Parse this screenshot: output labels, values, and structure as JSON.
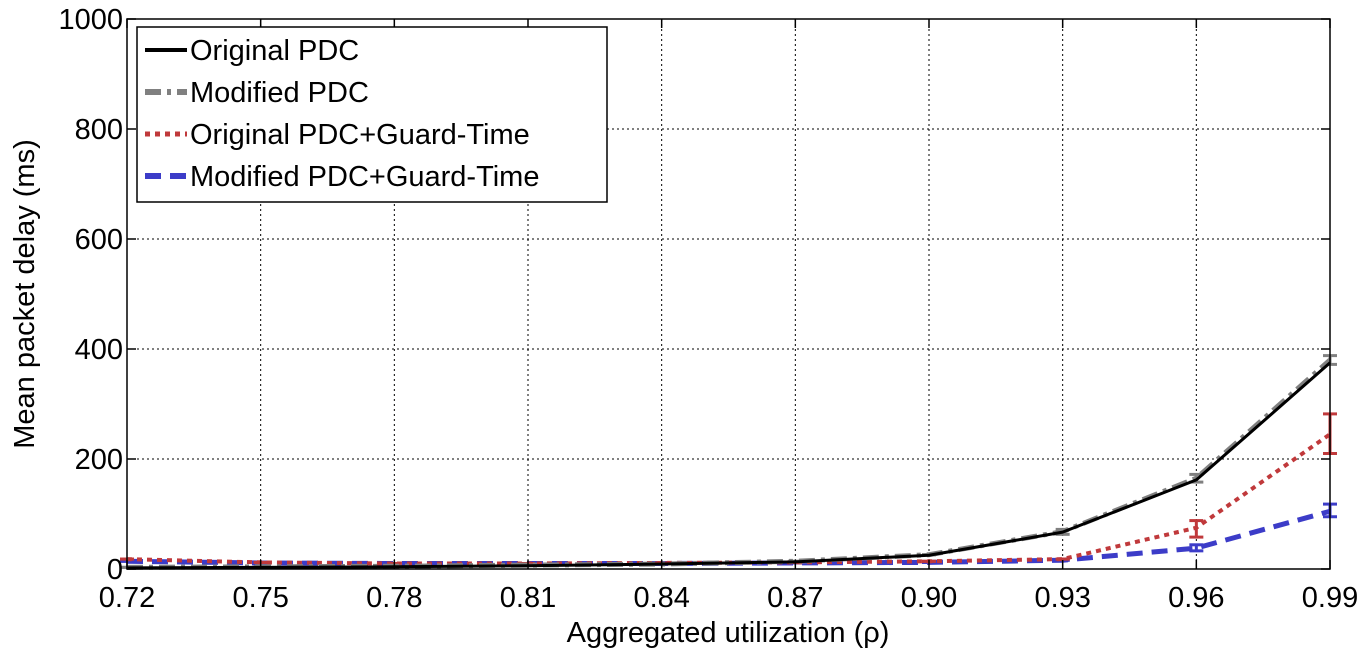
{
  "chart_data": {
    "type": "line",
    "title": "",
    "xlabel": "Aggregated utilization (ρ)",
    "ylabel": "Mean packet delay (ms)",
    "xlim": [
      0.72,
      0.99
    ],
    "ylim": [
      0,
      1000
    ],
    "grid": true,
    "legend_position": "top-left",
    "x": [
      0.72,
      0.75,
      0.78,
      0.81,
      0.84,
      0.87,
      0.9,
      0.93,
      0.96,
      0.99
    ],
    "x_tick_labels": [
      "0.72",
      "0.75",
      "0.78",
      "0.81",
      "0.84",
      "0.87",
      "0.90",
      "0.93",
      "0.96",
      "0.99"
    ],
    "y_ticks": [
      0,
      200,
      400,
      600,
      800,
      1000
    ],
    "y_tick_labels": [
      "0",
      "200",
      "400",
      "600",
      "800",
      "1000"
    ],
    "series": [
      {
        "name": "Original PDC",
        "color": "#000000",
        "style": "solid",
        "values": [
          2,
          3,
          4,
          6,
          9,
          13,
          25,
          67,
          162,
          375
        ],
        "error_bars": false
      },
      {
        "name": "Modified PDC",
        "color": "#808080",
        "style": "dashdot",
        "values": [
          3,
          4,
          5,
          7,
          9,
          14,
          26,
          68,
          165,
          380
        ],
        "error_bars": true,
        "err_low": [
          3,
          4,
          5,
          7,
          9,
          14,
          26,
          63,
          158,
          372
        ],
        "err_high": [
          3,
          4,
          5,
          7,
          9,
          14,
          26,
          72,
          172,
          388
        ]
      },
      {
        "name": "Original PDC+Guard-Time",
        "color": "#c0393b",
        "style": "dotted",
        "values": [
          18,
          12,
          10,
          10,
          11,
          12,
          14,
          18,
          75,
          245
        ],
        "error_bars": true,
        "err_low": [
          18,
          12,
          10,
          10,
          11,
          12,
          14,
          18,
          58,
          210
        ],
        "err_high": [
          18,
          12,
          10,
          10,
          11,
          12,
          14,
          18,
          88,
          282
        ]
      },
      {
        "name": "Modified PDC+Guard-Time",
        "color": "#3c3cc8",
        "style": "dashed",
        "values": [
          14,
          11,
          10,
          10,
          10,
          11,
          12,
          16,
          38,
          105
        ],
        "error_bars": true,
        "err_low": [
          14,
          11,
          10,
          10,
          10,
          11,
          12,
          16,
          33,
          95
        ],
        "err_high": [
          14,
          11,
          10,
          10,
          10,
          11,
          12,
          16,
          44,
          118
        ]
      }
    ]
  }
}
